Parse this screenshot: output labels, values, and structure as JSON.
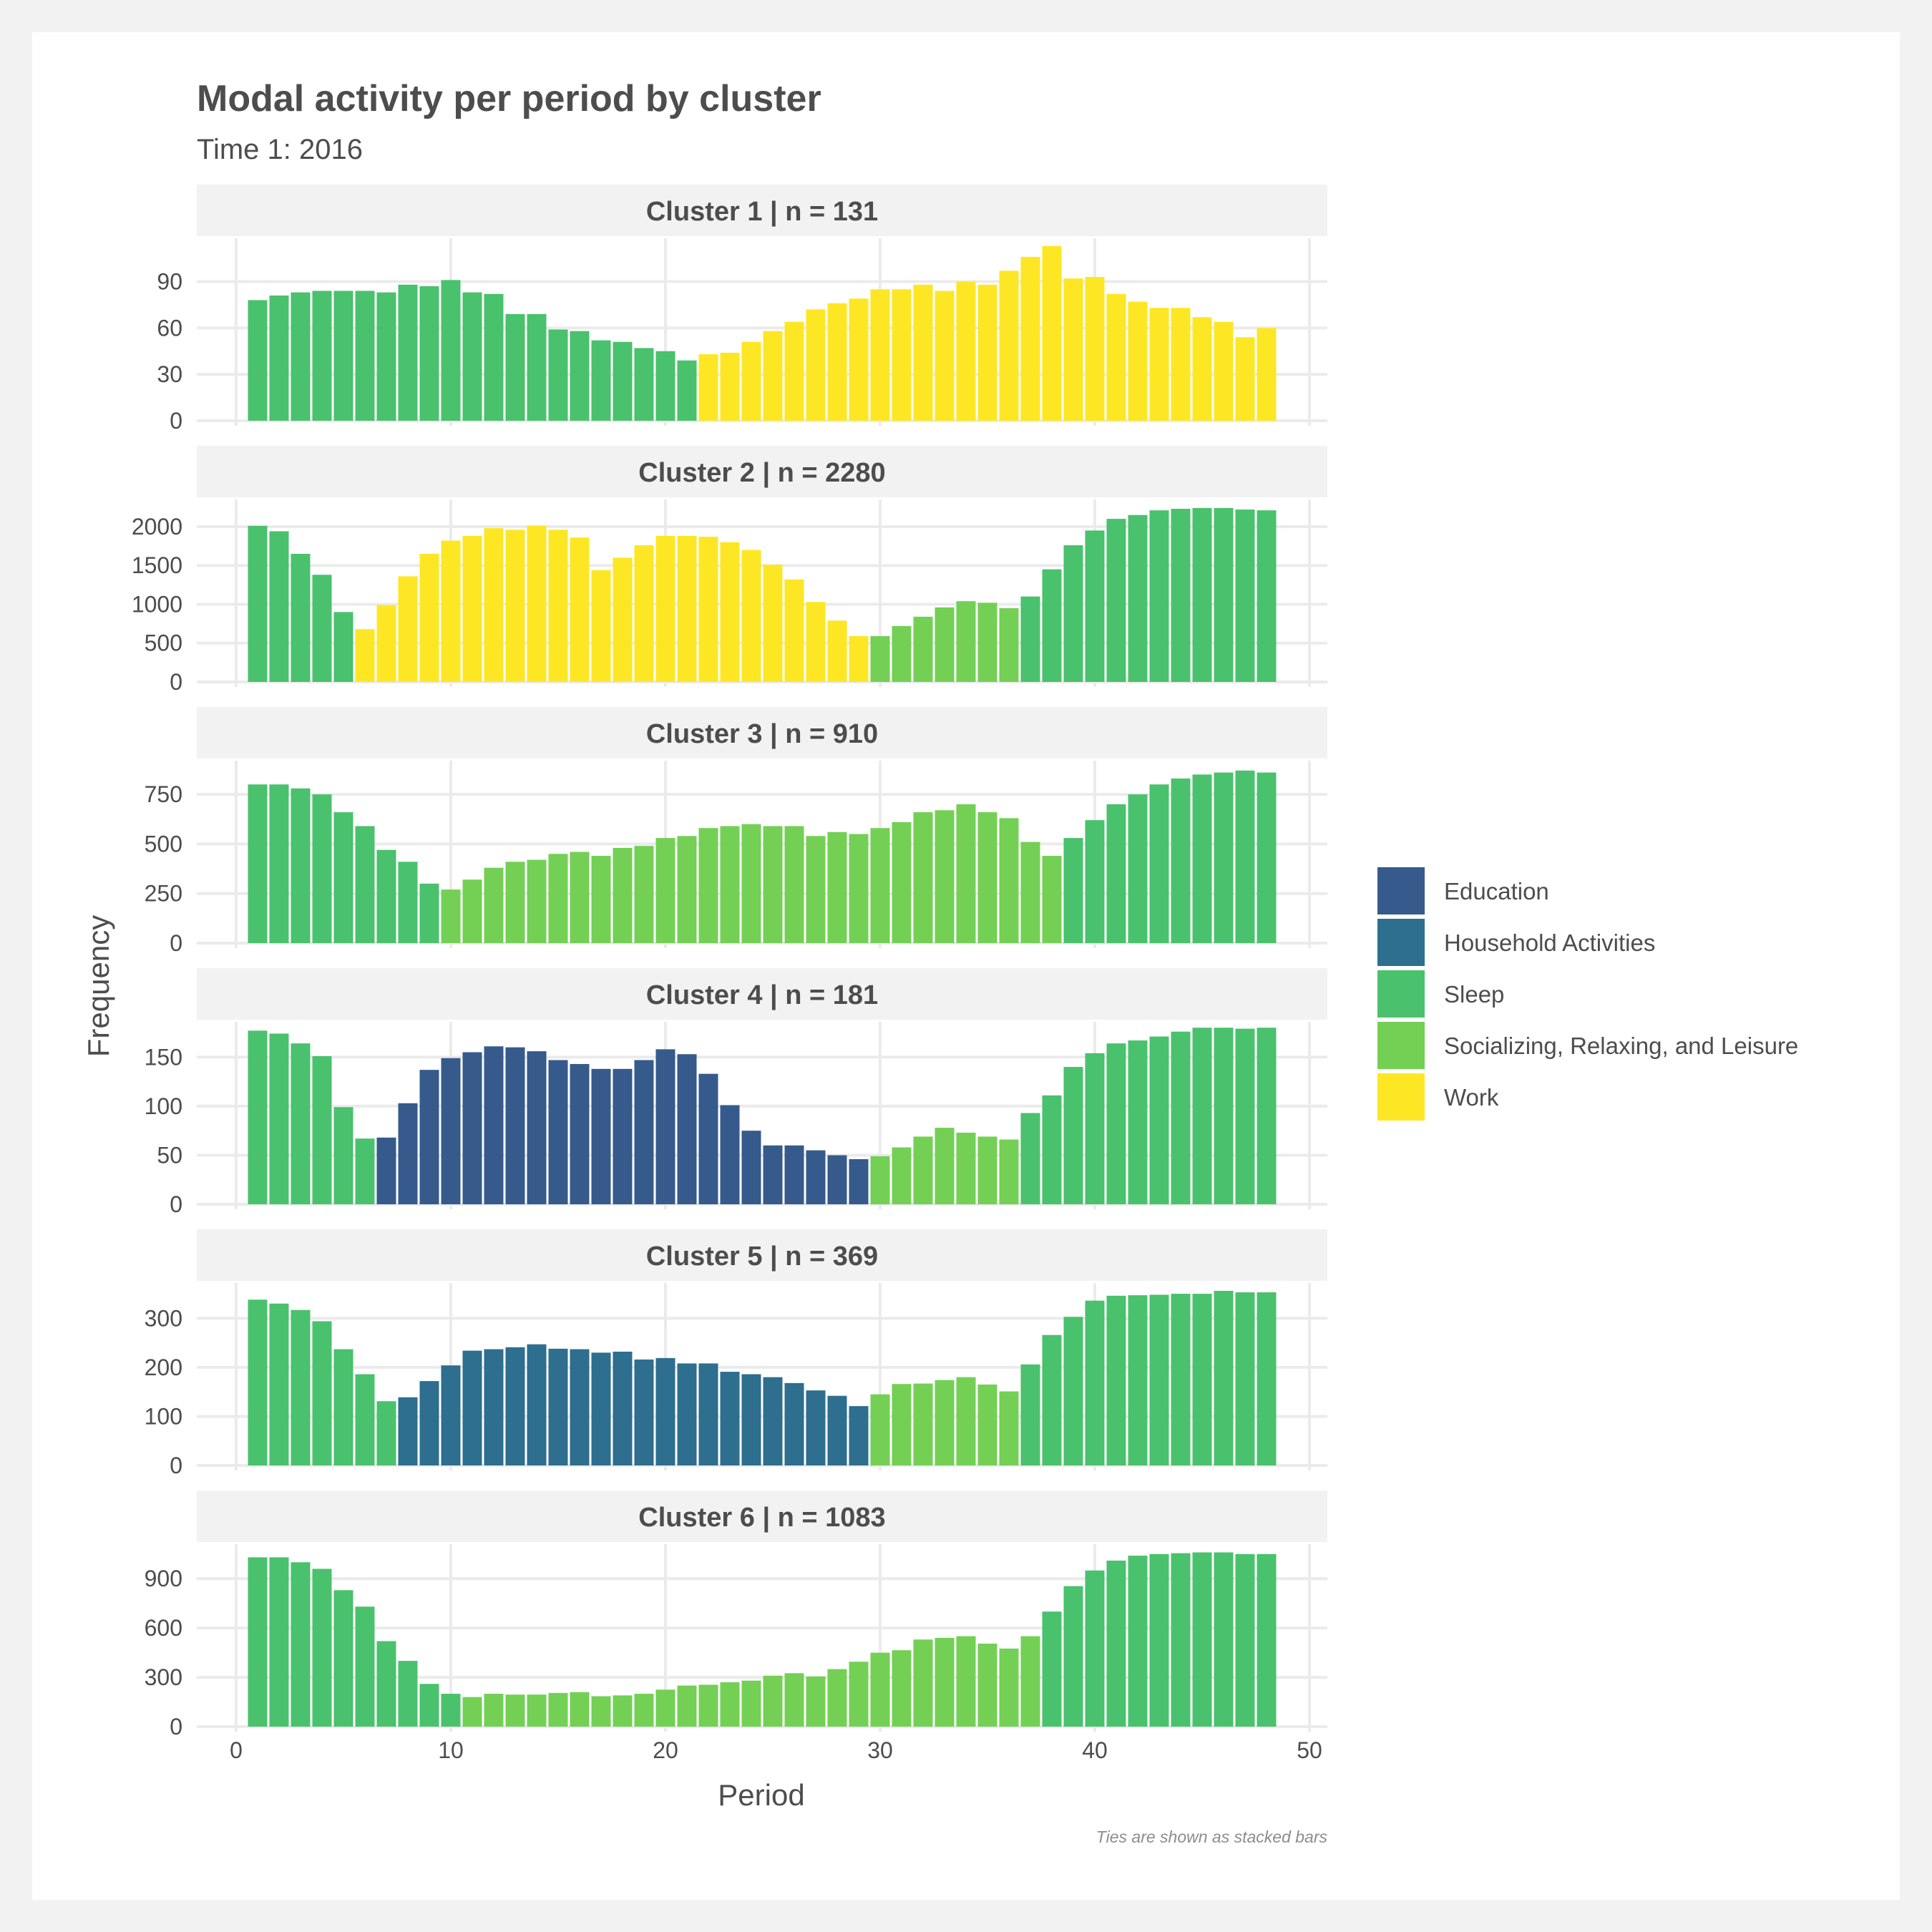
{
  "title": "Modal activity per period by cluster",
  "subtitle": "Time 1: 2016",
  "caption": "Ties are shown as stacked bars",
  "chart_data": {
    "type": "bar",
    "layout": "faceted-vertical",
    "xlabel": "Period",
    "ylabel": "Frequency",
    "xlim": [
      0,
      50
    ],
    "x_ticks": [
      "0",
      "10",
      "20",
      "30",
      "40",
      "50"
    ],
    "grid": true,
    "legend_position": "right",
    "categories": {
      "Education": "#365a8b",
      "Household Activities": "#2e6e8e",
      "Sleep": "#4ac16d",
      "Socializing, Relaxing, and Leisure": "#73d055",
      "Work": "#fde725"
    },
    "legend": [
      "Education",
      "Household Activities",
      "Sleep",
      "Socializing, Relaxing, and Leisure",
      "Work"
    ],
    "x": [
      1,
      2,
      3,
      4,
      5,
      6,
      7,
      8,
      9,
      10,
      11,
      12,
      13,
      14,
      15,
      16,
      17,
      18,
      19,
      20,
      21,
      22,
      23,
      24,
      25,
      26,
      27,
      28,
      29,
      30,
      31,
      32,
      33,
      34,
      35,
      36,
      37,
      38,
      39,
      40,
      41,
      42,
      43,
      44,
      45,
      46,
      47,
      48
    ],
    "facets": [
      {
        "label": "Cluster 1  | n =  131",
        "ylim": [
          0,
          118
        ],
        "y_ticks": [
          0,
          30,
          60,
          90
        ],
        "values": [
          78,
          81,
          83,
          84,
          84,
          84,
          83,
          88,
          87,
          91,
          83,
          82,
          69,
          69,
          59,
          58,
          52,
          51,
          47,
          45,
          39,
          43,
          44,
          51,
          58,
          64,
          72,
          76,
          79,
          85,
          85,
          88,
          84,
          90,
          88,
          97,
          106,
          113,
          92,
          93,
          82,
          77,
          73,
          73,
          67,
          64,
          54,
          60
        ],
        "activities": [
          "Sleep",
          "Sleep",
          "Sleep",
          "Sleep",
          "Sleep",
          "Sleep",
          "Sleep",
          "Sleep",
          "Sleep",
          "Sleep",
          "Sleep",
          "Sleep",
          "Sleep",
          "Sleep",
          "Sleep",
          "Sleep",
          "Sleep",
          "Sleep",
          "Sleep",
          "Sleep",
          "Sleep",
          "Work",
          "Work",
          "Work",
          "Work",
          "Work",
          "Work",
          "Work",
          "Work",
          "Work",
          "Work",
          "Work",
          "Work",
          "Work",
          "Work",
          "Work",
          "Work",
          "Work",
          "Work",
          "Work",
          "Work",
          "Work",
          "Work",
          "Work",
          "Work",
          "Work",
          "Work",
          "Work"
        ]
      },
      {
        "label": "Cluster 2  | n =  2280",
        "ylim": [
          0,
          2350
        ],
        "y_ticks": [
          0,
          500,
          1000,
          1500,
          2000
        ],
        "values": [
          2010,
          1940,
          1650,
          1380,
          900,
          680,
          990,
          1360,
          1650,
          1820,
          1880,
          1980,
          1960,
          2010,
          1960,
          1860,
          1440,
          1600,
          1760,
          1880,
          1880,
          1870,
          1800,
          1700,
          1510,
          1320,
          1030,
          790,
          590,
          590,
          720,
          840,
          960,
          1040,
          1020,
          950,
          1100,
          1450,
          1760,
          1950,
          2100,
          2150,
          2210,
          2230,
          2240,
          2240,
          2220,
          2210
        ],
        "activities": [
          "Sleep",
          "Sleep",
          "Sleep",
          "Sleep",
          "Sleep",
          "Work",
          "Work",
          "Work",
          "Work",
          "Work",
          "Work",
          "Work",
          "Work",
          "Work",
          "Work",
          "Work",
          "Work",
          "Work",
          "Work",
          "Work",
          "Work",
          "Work",
          "Work",
          "Work",
          "Work",
          "Work",
          "Work",
          "Work",
          "Work",
          "Socializing, Relaxing, and Leisure",
          "Socializing, Relaxing, and Leisure",
          "Socializing, Relaxing, and Leisure",
          "Socializing, Relaxing, and Leisure",
          "Socializing, Relaxing, and Leisure",
          "Socializing, Relaxing, and Leisure",
          "Socializing, Relaxing, and Leisure",
          "Sleep",
          "Sleep",
          "Sleep",
          "Sleep",
          "Sleep",
          "Sleep",
          "Sleep",
          "Sleep",
          "Sleep",
          "Sleep",
          "Sleep",
          "Sleep"
        ]
      },
      {
        "label": "Cluster 3  | n =  910",
        "ylim": [
          0,
          920
        ],
        "y_ticks": [
          0,
          250,
          500,
          750
        ],
        "values": [
          800,
          800,
          780,
          750,
          660,
          590,
          470,
          410,
          300,
          270,
          320,
          380,
          410,
          420,
          450,
          460,
          440,
          480,
          490,
          530,
          540,
          580,
          590,
          600,
          590,
          590,
          540,
          560,
          550,
          580,
          610,
          660,
          670,
          700,
          660,
          630,
          510,
          440,
          530,
          620,
          700,
          750,
          800,
          830,
          850,
          860,
          870,
          860
        ],
        "activities": [
          "Sleep",
          "Sleep",
          "Sleep",
          "Sleep",
          "Sleep",
          "Sleep",
          "Sleep",
          "Sleep",
          "Sleep",
          "Socializing, Relaxing, and Leisure",
          "Socializing, Relaxing, and Leisure",
          "Socializing, Relaxing, and Leisure",
          "Socializing, Relaxing, and Leisure",
          "Socializing, Relaxing, and Leisure",
          "Socializing, Relaxing, and Leisure",
          "Socializing, Relaxing, and Leisure",
          "Socializing, Relaxing, and Leisure",
          "Socializing, Relaxing, and Leisure",
          "Socializing, Relaxing, and Leisure",
          "Socializing, Relaxing, and Leisure",
          "Socializing, Relaxing, and Leisure",
          "Socializing, Relaxing, and Leisure",
          "Socializing, Relaxing, and Leisure",
          "Socializing, Relaxing, and Leisure",
          "Socializing, Relaxing, and Leisure",
          "Socializing, Relaxing, and Leisure",
          "Socializing, Relaxing, and Leisure",
          "Socializing, Relaxing, and Leisure",
          "Socializing, Relaxing, and Leisure",
          "Socializing, Relaxing, and Leisure",
          "Socializing, Relaxing, and Leisure",
          "Socializing, Relaxing, and Leisure",
          "Socializing, Relaxing, and Leisure",
          "Socializing, Relaxing, and Leisure",
          "Socializing, Relaxing, and Leisure",
          "Socializing, Relaxing, and Leisure",
          "Socializing, Relaxing, and Leisure",
          "Socializing, Relaxing, and Leisure",
          "Sleep",
          "Sleep",
          "Sleep",
          "Sleep",
          "Sleep",
          "Sleep",
          "Sleep",
          "Sleep",
          "Sleep",
          "Sleep"
        ]
      },
      {
        "label": "Cluster 4  | n =  181",
        "ylim": [
          0,
          186
        ],
        "y_ticks": [
          0,
          50,
          100,
          150
        ],
        "values": [
          177,
          174,
          164,
          151,
          99,
          67,
          68,
          103,
          137,
          149,
          155,
          161,
          160,
          156,
          147,
          143,
          138,
          138,
          147,
          158,
          153,
          133,
          101,
          75,
          60,
          60,
          55,
          50,
          46,
          49,
          58,
          69,
          78,
          73,
          69,
          66,
          93,
          111,
          140,
          154,
          164,
          167,
          171,
          176,
          180,
          180,
          179,
          180
        ],
        "activities": [
          "Sleep",
          "Sleep",
          "Sleep",
          "Sleep",
          "Sleep",
          "Sleep",
          "Education",
          "Education",
          "Education",
          "Education",
          "Education",
          "Education",
          "Education",
          "Education",
          "Education",
          "Education",
          "Education",
          "Education",
          "Education",
          "Education",
          "Education",
          "Education",
          "Education",
          "Education",
          "Education",
          "Education",
          "Education",
          "Education",
          "Education",
          "Socializing, Relaxing, and Leisure",
          "Socializing, Relaxing, and Leisure",
          "Socializing, Relaxing, and Leisure",
          "Socializing, Relaxing, and Leisure",
          "Socializing, Relaxing, and Leisure",
          "Socializing, Relaxing, and Leisure",
          "Socializing, Relaxing, and Leisure",
          "Sleep",
          "Sleep",
          "Sleep",
          "Sleep",
          "Sleep",
          "Sleep",
          "Sleep",
          "Sleep",
          "Sleep",
          "Sleep",
          "Sleep",
          "Sleep"
        ]
      },
      {
        "label": "Cluster 5  | n =  369",
        "ylim": [
          0,
          372
        ],
        "y_ticks": [
          0,
          100,
          200,
          300
        ],
        "values": [
          338,
          330,
          317,
          294,
          237,
          186,
          131,
          139,
          172,
          204,
          234,
          237,
          241,
          247,
          238,
          237,
          230,
          232,
          216,
          219,
          208,
          208,
          191,
          186,
          180,
          168,
          153,
          142,
          121,
          145,
          166,
          167,
          174,
          180,
          165,
          151,
          206,
          266,
          303,
          336,
          346,
          347,
          348,
          350,
          350,
          356,
          353,
          353
        ],
        "activities": [
          "Sleep",
          "Sleep",
          "Sleep",
          "Sleep",
          "Sleep",
          "Sleep",
          "Sleep",
          "Household Activities",
          "Household Activities",
          "Household Activities",
          "Household Activities",
          "Household Activities",
          "Household Activities",
          "Household Activities",
          "Household Activities",
          "Household Activities",
          "Household Activities",
          "Household Activities",
          "Household Activities",
          "Household Activities",
          "Household Activities",
          "Household Activities",
          "Household Activities",
          "Household Activities",
          "Household Activities",
          "Household Activities",
          "Household Activities",
          "Household Activities",
          "Household Activities",
          "Socializing, Relaxing, and Leisure",
          "Socializing, Relaxing, and Leisure",
          "Socializing, Relaxing, and Leisure",
          "Socializing, Relaxing, and Leisure",
          "Socializing, Relaxing, and Leisure",
          "Socializing, Relaxing, and Leisure",
          "Socializing, Relaxing, and Leisure",
          "Sleep",
          "Sleep",
          "Sleep",
          "Sleep",
          "Sleep",
          "Sleep",
          "Sleep",
          "Sleep",
          "Sleep",
          "Sleep",
          "Sleep",
          "Sleep"
        ]
      },
      {
        "label": "Cluster 6  | n =  1083",
        "ylim": [
          0,
          1110
        ],
        "y_ticks": [
          0,
          300,
          600,
          900
        ],
        "values": [
          1030,
          1030,
          1000,
          960,
          830,
          730,
          520,
          400,
          260,
          200,
          180,
          200,
          195,
          195,
          205,
          210,
          185,
          190,
          200,
          225,
          250,
          255,
          270,
          280,
          310,
          325,
          305,
          350,
          395,
          450,
          465,
          530,
          540,
          550,
          505,
          475,
          550,
          700,
          855,
          950,
          1010,
          1040,
          1050,
          1055,
          1060,
          1060,
          1050,
          1050
        ],
        "activities": [
          "Sleep",
          "Sleep",
          "Sleep",
          "Sleep",
          "Sleep",
          "Sleep",
          "Sleep",
          "Sleep",
          "Sleep",
          "Sleep",
          "Socializing, Relaxing, and Leisure",
          "Socializing, Relaxing, and Leisure",
          "Socializing, Relaxing, and Leisure",
          "Socializing, Relaxing, and Leisure",
          "Socializing, Relaxing, and Leisure",
          "Socializing, Relaxing, and Leisure",
          "Socializing, Relaxing, and Leisure",
          "Socializing, Relaxing, and Leisure",
          "Socializing, Relaxing, and Leisure",
          "Socializing, Relaxing, and Leisure",
          "Socializing, Relaxing, and Leisure",
          "Socializing, Relaxing, and Leisure",
          "Socializing, Relaxing, and Leisure",
          "Socializing, Relaxing, and Leisure",
          "Socializing, Relaxing, and Leisure",
          "Socializing, Relaxing, and Leisure",
          "Socializing, Relaxing, and Leisure",
          "Socializing, Relaxing, and Leisure",
          "Socializing, Relaxing, and Leisure",
          "Socializing, Relaxing, and Leisure",
          "Socializing, Relaxing, and Leisure",
          "Socializing, Relaxing, and Leisure",
          "Socializing, Relaxing, and Leisure",
          "Socializing, Relaxing, and Leisure",
          "Socializing, Relaxing, and Leisure",
          "Socializing, Relaxing, and Leisure",
          "Socializing, Relaxing, and Leisure",
          "Sleep",
          "Sleep",
          "Sleep",
          "Sleep",
          "Sleep",
          "Sleep",
          "Sleep",
          "Sleep",
          "Sleep",
          "Sleep",
          "Sleep"
        ]
      }
    ]
  }
}
